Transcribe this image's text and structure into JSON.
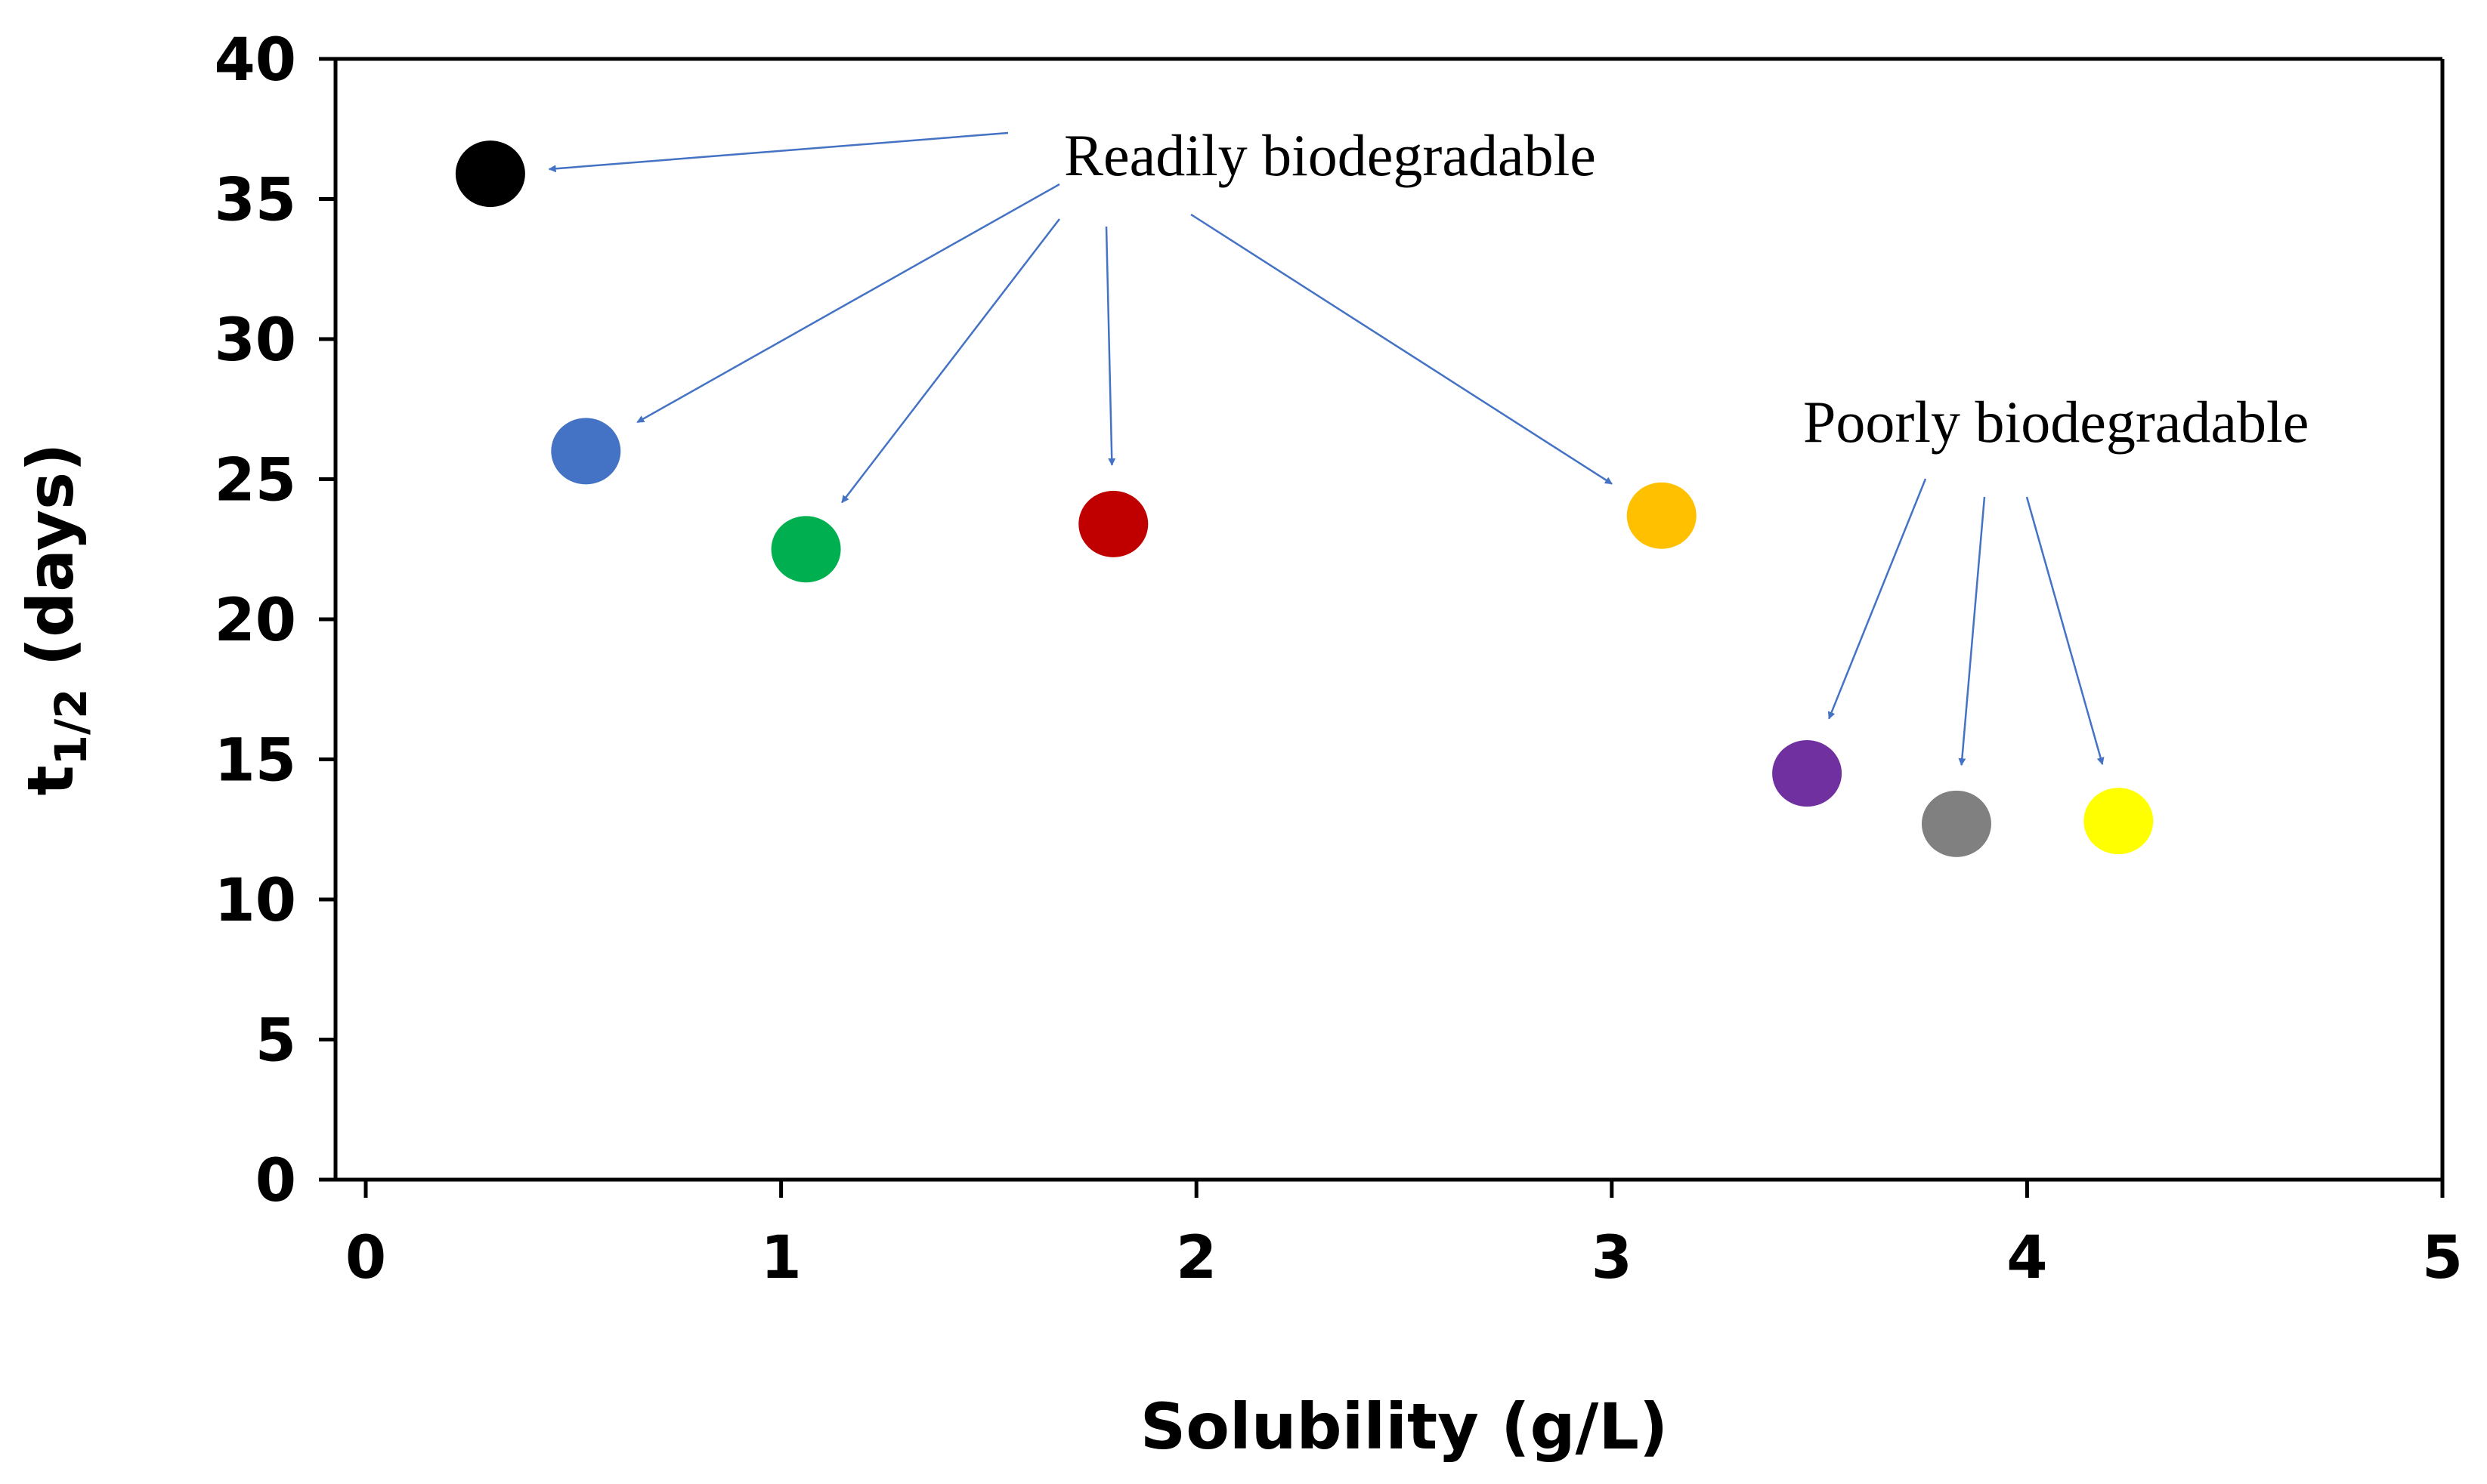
{
  "chart_data": {
    "type": "scatter",
    "title": "",
    "xlabel": "Solubility (g/L)",
    "ylabel": {
      "main": "t",
      "subscript": "1/2",
      "suffix": " (days)"
    },
    "xlim": [
      0,
      5
    ],
    "ylim": [
      0,
      40
    ],
    "xticks": [
      "0",
      "1",
      "2",
      "3",
      "4",
      "5"
    ],
    "yticks": [
      "0",
      "5",
      "10",
      "15",
      "20",
      "25",
      "30",
      "35",
      "40"
    ],
    "grid": false,
    "legend": "none",
    "points": [
      {
        "x": 0.3,
        "y": 35.9,
        "color": "#000000",
        "group": "Readily biodegradable"
      },
      {
        "x": 0.53,
        "y": 26.0,
        "color": "#4472c4",
        "group": "Readily biodegradable"
      },
      {
        "x": 1.06,
        "y": 22.5,
        "color": "#00b050",
        "group": "Readily biodegradable"
      },
      {
        "x": 1.8,
        "y": 23.4,
        "color": "#c00000",
        "group": "Readily biodegradable"
      },
      {
        "x": 3.12,
        "y": 23.7,
        "color": "#ffc000",
        "group": "Readily biodegradable"
      },
      {
        "x": 3.47,
        "y": 14.5,
        "color": "#7030a0",
        "group": "Poorly biodegradable"
      },
      {
        "x": 3.83,
        "y": 12.7,
        "color": "#808080",
        "group": "Poorly biodegradable"
      },
      {
        "x": 4.22,
        "y": 12.8,
        "color": "#ffff00",
        "group": "Poorly biodegradable"
      }
    ],
    "annotations": [
      {
        "text": "Readily biodegradable",
        "targets": [
          0,
          1,
          2,
          3,
          4
        ]
      },
      {
        "text": "Poorly biodegradable",
        "targets": [
          5,
          6,
          7
        ]
      }
    ],
    "colors": {
      "axis": "#000000",
      "arrow": "#4472c4"
    }
  }
}
